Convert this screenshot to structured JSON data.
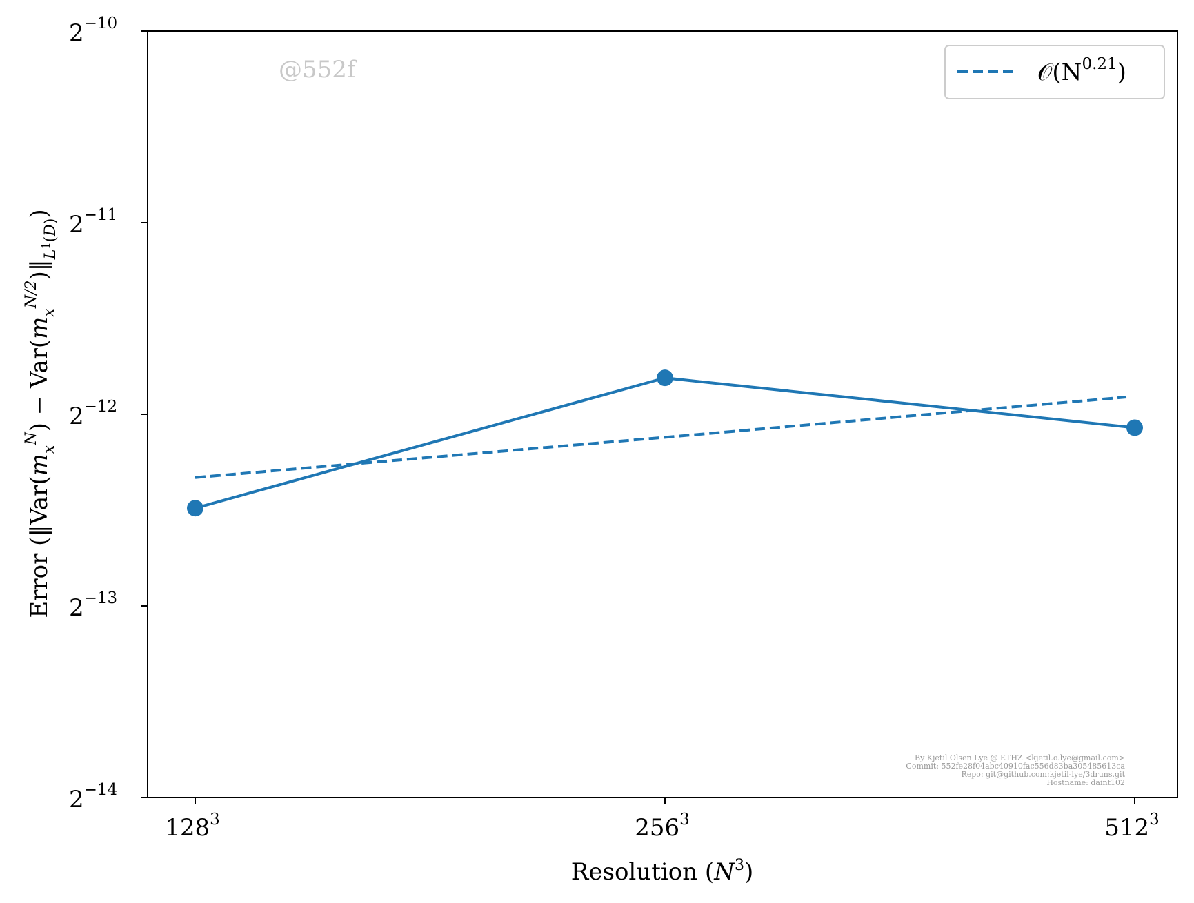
{
  "chart_data": {
    "type": "line",
    "x_scale": "log2",
    "y_scale": "log2",
    "x": [
      128,
      256,
      512
    ],
    "x_tick_base": [
      "128",
      "256",
      "512"
    ],
    "x_tick_exp": "3",
    "ylim_exponent": [
      -14,
      -10
    ],
    "y_tick_base": "2",
    "y_tick_exps": [
      "−14",
      "−13",
      "−12",
      "−11",
      "−10"
    ],
    "xlabel": "Resolution (N³)",
    "ylabel": "Error (||Var(mₓᴺ) − Var(mₓᴺᐟ²)||L¹(D))",
    "series": [
      {
        "values_log2": [
          -12.49,
          -11.81,
          -12.07
        ],
        "color": "#1f77b4",
        "style": "solid",
        "marker": "circle"
      },
      {
        "name": "𝒪(N^0.21)",
        "values_log2": [
          -12.33,
          -12.12,
          -11.91
        ],
        "color": "#1f77b4",
        "style": "dashed"
      }
    ],
    "legend": {
      "position": "top-right",
      "label": "𝒪(N",
      "label_exp": "0.21",
      "label_close": ")"
    },
    "grid": false
  },
  "watermark": "@552f",
  "metadata_lines": [
    "By Kjetil Olsen Lye @ ETHZ <kjetil.o.lye@gmail.com>",
    "Commit: 552fe28f04abc40910fac556d83ba305485613ca",
    "Repo: git@github.com:kjetil-lye/3druns.git",
    "Hostname: daint102"
  ]
}
